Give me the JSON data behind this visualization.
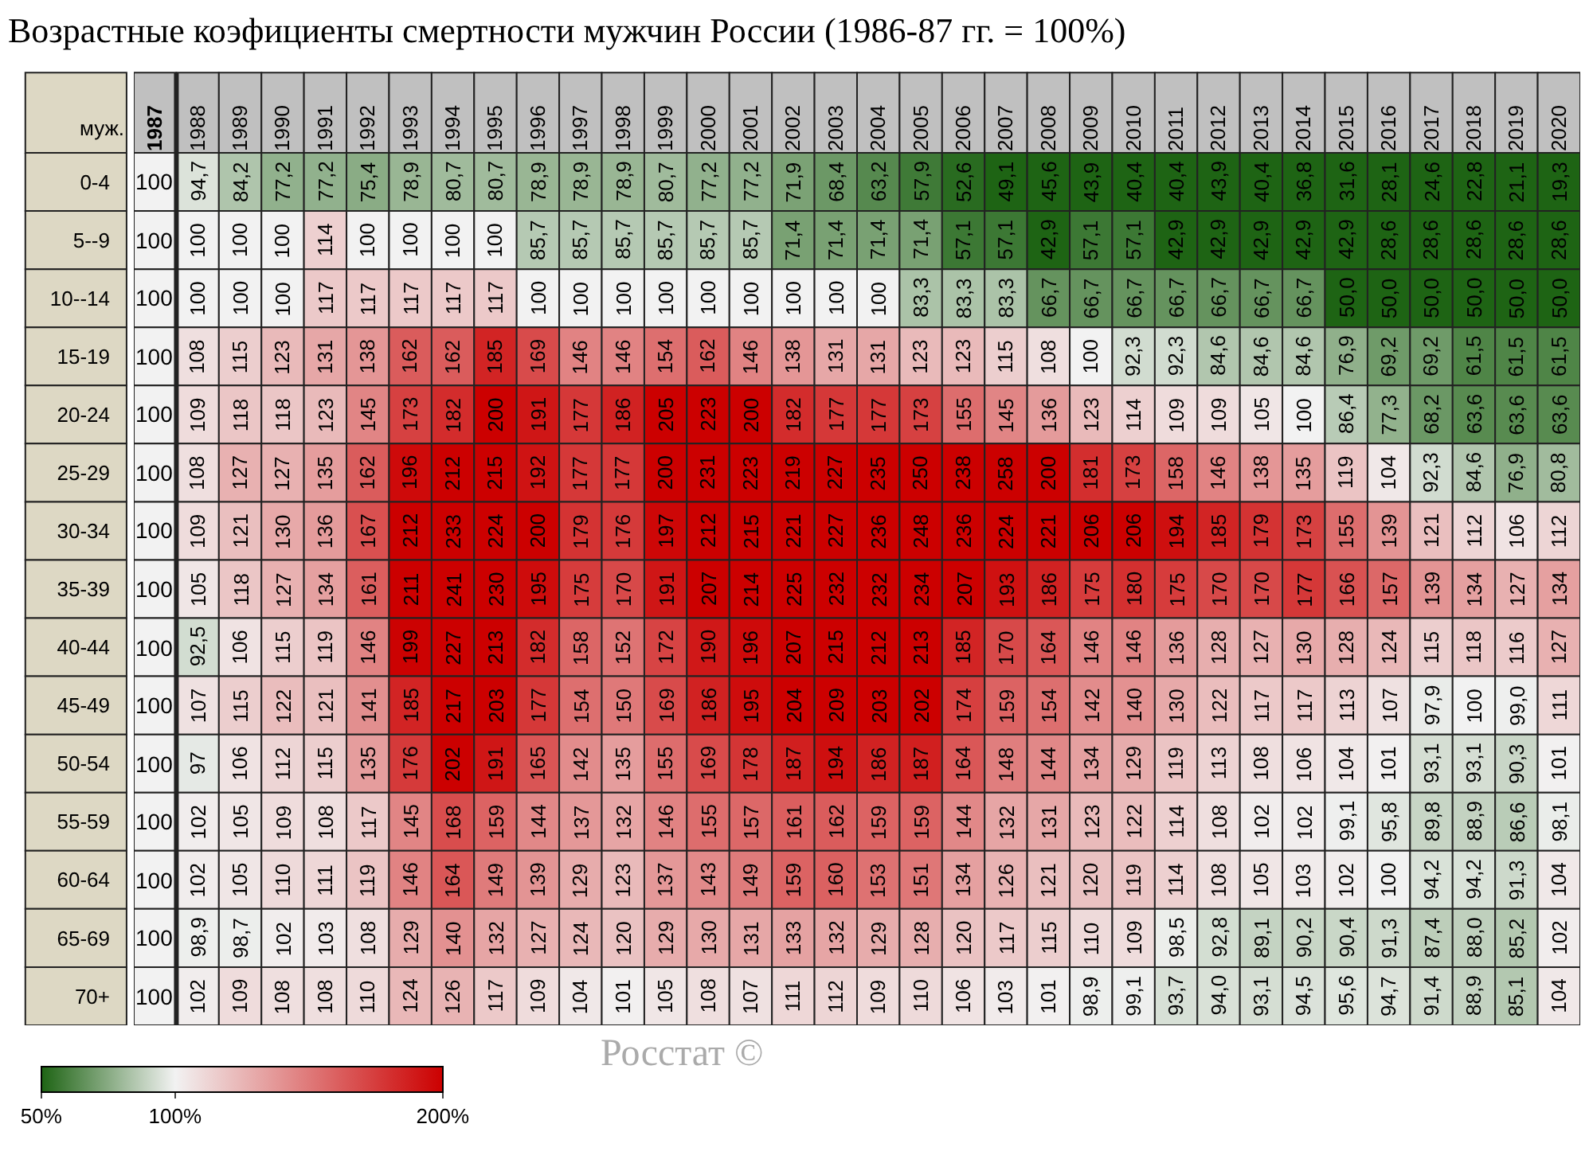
{
  "chart_data": {
    "type": "heatmap",
    "title": "Возрастные коэфициенты смертности мужчин России (1986-87 гг. = 100%)",
    "ylabel": "муж.",
    "annotations": [
      "Росстат ©"
    ],
    "categories": [
      "1987",
      "1988",
      "1989",
      "1990",
      "1991",
      "1992",
      "1993",
      "1994",
      "1995",
      "1996",
      "1997",
      "1998",
      "1999",
      "2000",
      "2001",
      "2002",
      "2003",
      "2004",
      "2005",
      "2006",
      "2007",
      "2008",
      "2009",
      "2010",
      "2011",
      "2012",
      "2013",
      "2014",
      "2015",
      "2016",
      "2017",
      "2018",
      "2019",
      "2020"
    ],
    "y_categories": [
      "0-4",
      "5--9",
      "10--14",
      "15-19",
      "20-24",
      "25-29",
      "30-34",
      "35-39",
      "40-44",
      "45-49",
      "50-54",
      "55-59",
      "60-64",
      "65-69",
      "70+"
    ],
    "cells": [
      [
        100,
        94.7,
        84.2,
        77.2,
        77.2,
        75.4,
        78.9,
        80.7,
        80.7,
        78.9,
        78.9,
        78.9,
        80.7,
        77.2,
        77.2,
        71.9,
        68.4,
        63.2,
        57.9,
        52.6,
        49.1,
        45.6,
        43.9,
        40.4,
        40.4,
        43.9,
        40.4,
        36.8,
        31.6,
        28.1,
        24.6,
        22.8,
        21.1,
        19.3
      ],
      [
        100,
        100,
        100,
        100,
        114,
        100,
        100,
        100,
        100,
        85.7,
        85.7,
        85.7,
        85.7,
        85.7,
        85.7,
        71.4,
        71.4,
        71.4,
        71.4,
        57.1,
        57.1,
        42.9,
        57.1,
        57.1,
        42.9,
        42.9,
        42.9,
        42.9,
        42.9,
        28.6,
        28.6,
        28.6,
        28.6,
        28.6
      ],
      [
        100,
        100,
        100,
        100,
        117,
        117,
        117,
        117,
        117,
        100,
        100,
        100,
        100,
        100,
        100,
        100,
        100,
        100,
        83.3,
        83.3,
        83.3,
        66.7,
        66.7,
        66.7,
        66.7,
        66.7,
        66.7,
        66.7,
        50.0,
        50.0,
        50.0,
        50.0,
        50.0,
        50.0
      ],
      [
        100,
        108,
        115,
        123,
        131,
        138,
        162,
        162,
        185,
        169,
        146,
        146,
        154,
        162,
        146,
        138,
        131,
        131,
        123,
        123,
        115,
        108,
        100,
        92.3,
        92.3,
        84.6,
        84.6,
        84.6,
        76.9,
        69.2,
        69.2,
        61.5,
        61.5,
        61.5
      ],
      [
        100,
        109,
        118,
        118,
        123,
        145,
        173,
        182,
        200,
        191,
        177,
        186,
        205,
        223,
        200,
        182,
        177,
        177,
        173,
        155,
        145,
        136,
        123,
        114,
        109,
        109,
        105,
        100,
        86.4,
        77.3,
        68.2,
        63.6,
        63.6,
        63.6
      ],
      [
        100,
        108,
        127,
        127,
        135,
        162,
        196,
        212,
        215,
        192,
        177,
        177,
        200,
        231,
        223,
        219,
        227,
        235,
        250,
        238,
        258,
        200,
        181,
        173,
        158,
        146,
        138,
        135,
        119,
        104,
        92.3,
        84.6,
        76.9,
        80.8
      ],
      [
        100,
        109,
        121,
        130,
        136,
        167,
        212,
        233,
        224,
        200,
        179,
        176,
        197,
        212,
        215,
        221,
        227,
        236,
        248,
        236,
        224,
        221,
        206,
        206,
        194,
        185,
        179,
        173,
        155,
        139,
        121,
        112,
        106,
        112
      ],
      [
        100,
        105,
        118,
        127,
        134,
        161,
        211,
        241,
        230,
        195,
        175,
        170,
        191,
        207,
        214,
        225,
        232,
        232,
        234,
        207,
        193,
        186,
        175,
        180,
        175,
        170,
        170,
        177,
        166,
        157,
        139,
        134,
        127,
        134
      ],
      [
        100,
        92.5,
        106,
        115,
        119,
        146,
        199,
        227,
        213,
        182,
        158,
        152,
        172,
        190,
        196,
        207,
        215,
        212,
        213,
        185,
        170,
        164,
        146,
        146,
        136,
        128,
        127,
        130,
        128,
        124,
        115,
        118,
        116,
        127
      ],
      [
        100,
        107,
        115,
        122,
        121,
        141,
        185,
        217,
        203,
        177,
        154,
        150,
        169,
        186,
        195,
        204,
        209,
        203,
        202,
        174,
        159,
        154,
        142,
        140,
        130,
        122,
        117,
        117,
        113,
        107,
        97.9,
        100,
        99.0,
        111
      ],
      [
        100,
        97,
        106,
        112,
        115,
        135,
        176,
        202,
        191,
        165,
        142,
        135,
        155,
        169,
        178,
        187,
        194,
        186,
        187,
        164,
        148,
        144,
        134,
        129,
        119,
        113,
        108,
        106,
        104,
        101,
        93.1,
        93.1,
        90.3,
        101
      ],
      [
        100,
        102,
        105,
        109,
        108,
        117,
        145,
        168,
        159,
        144,
        137,
        132,
        146,
        155,
        157,
        161,
        162,
        159,
        159,
        144,
        132,
        131,
        123,
        122,
        114,
        108,
        102,
        102,
        99.1,
        95.8,
        89.8,
        88.9,
        86.6,
        98.1
      ],
      [
        100,
        102,
        105,
        110,
        111,
        119,
        146,
        164,
        149,
        139,
        129,
        123,
        137,
        143,
        149,
        159,
        160,
        153,
        151,
        134,
        126,
        121,
        120,
        119,
        114,
        108,
        105,
        103,
        102,
        100,
        94.2,
        94.2,
        91.3,
        104
      ],
      [
        100,
        98.9,
        98.7,
        102,
        103,
        108,
        129,
        140,
        132,
        127,
        124,
        120,
        129,
        130,
        131,
        133,
        132,
        129,
        128,
        120,
        117,
        115,
        110,
        109,
        98.5,
        92.8,
        89.1,
        90.2,
        90.4,
        91.3,
        87.4,
        88.0,
        85.2,
        102
      ],
      [
        100,
        102,
        109,
        108,
        108,
        110,
        124,
        126,
        117,
        109,
        104,
        101,
        105,
        108,
        107,
        111,
        112,
        109,
        110,
        106,
        103,
        101,
        98.9,
        99.1,
        93.7,
        94.0,
        93.1,
        94.5,
        95.6,
        94.7,
        91.4,
        88.9,
        85.1,
        104
      ]
    ],
    "cell_labels": [
      [
        "100",
        "94,7",
        "84,2",
        "77,2",
        "77,2",
        "75,4",
        "78,9",
        "80,7",
        "80,7",
        "78,9",
        "78,9",
        "78,9",
        "80,7",
        "77,2",
        "77,2",
        "71,9",
        "68,4",
        "63,2",
        "57,9",
        "52,6",
        "49,1",
        "45,6",
        "43,9",
        "40,4",
        "40,4",
        "43,9",
        "40,4",
        "36,8",
        "31,6",
        "28,1",
        "24,6",
        "22,8",
        "21,1",
        "19,3"
      ],
      [
        "100",
        "100",
        "100",
        "100",
        "114",
        "100",
        "100",
        "100",
        "100",
        "85,7",
        "85,7",
        "85,7",
        "85,7",
        "85,7",
        "85,7",
        "71,4",
        "71,4",
        "71,4",
        "71,4",
        "57,1",
        "57,1",
        "42,9",
        "57,1",
        "57,1",
        "42,9",
        "42,9",
        "42,9",
        "42,9",
        "42,9",
        "28,6",
        "28,6",
        "28,6",
        "28,6",
        "28,6"
      ],
      [
        "100",
        "100",
        "100",
        "100",
        "117",
        "117",
        "117",
        "117",
        "117",
        "100",
        "100",
        "100",
        "100",
        "100",
        "100",
        "100",
        "100",
        "100",
        "83,3",
        "83,3",
        "83,3",
        "66,7",
        "66,7",
        "66,7",
        "66,7",
        "66,7",
        "66,7",
        "66,7",
        "50,0",
        "50,0",
        "50,0",
        "50,0",
        "50,0",
        "50,0"
      ],
      [
        "100",
        "108",
        "115",
        "123",
        "131",
        "138",
        "162",
        "162",
        "185",
        "169",
        "146",
        "146",
        "154",
        "162",
        "146",
        "138",
        "131",
        "131",
        "123",
        "123",
        "115",
        "108",
        "100",
        "92,3",
        "92,3",
        "84,6",
        "84,6",
        "84,6",
        "76,9",
        "69,2",
        "69,2",
        "61,5",
        "61,5",
        "61,5"
      ],
      [
        "100",
        "109",
        "118",
        "118",
        "123",
        "145",
        "173",
        "182",
        "200",
        "191",
        "177",
        "186",
        "205",
        "223",
        "200",
        "182",
        "177",
        "177",
        "173",
        "155",
        "145",
        "136",
        "123",
        "114",
        "109",
        "109",
        "105",
        "100",
        "86,4",
        "77,3",
        "68,2",
        "63,6",
        "63,6",
        "63,6"
      ],
      [
        "100",
        "108",
        "127",
        "127",
        "135",
        "162",
        "196",
        "212",
        "215",
        "192",
        "177",
        "177",
        "200",
        "231",
        "223",
        "219",
        "227",
        "235",
        "250",
        "238",
        "258",
        "200",
        "181",
        "173",
        "158",
        "146",
        "138",
        "135",
        "119",
        "104",
        "92,3",
        "84,6",
        "76,9",
        "80,8"
      ],
      [
        "100",
        "109",
        "121",
        "130",
        "136",
        "167",
        "212",
        "233",
        "224",
        "200",
        "179",
        "176",
        "197",
        "212",
        "215",
        "221",
        "227",
        "236",
        "248",
        "236",
        "224",
        "221",
        "206",
        "206",
        "194",
        "185",
        "179",
        "173",
        "155",
        "139",
        "121",
        "112",
        "106",
        "112"
      ],
      [
        "100",
        "105",
        "118",
        "127",
        "134",
        "161",
        "211",
        "241",
        "230",
        "195",
        "175",
        "170",
        "191",
        "207",
        "214",
        "225",
        "232",
        "232",
        "234",
        "207",
        "193",
        "186",
        "175",
        "180",
        "175",
        "170",
        "170",
        "177",
        "166",
        "157",
        "139",
        "134",
        "127",
        "134"
      ],
      [
        "100",
        "92,5",
        "106",
        "115",
        "119",
        "146",
        "199",
        "227",
        "213",
        "182",
        "158",
        "152",
        "172",
        "190",
        "196",
        "207",
        "215",
        "212",
        "213",
        "185",
        "170",
        "164",
        "146",
        "146",
        "136",
        "128",
        "127",
        "130",
        "128",
        "124",
        "115",
        "118",
        "116",
        "127"
      ],
      [
        "100",
        "107",
        "115",
        "122",
        "121",
        "141",
        "185",
        "217",
        "203",
        "177",
        "154",
        "150",
        "169",
        "186",
        "195",
        "204",
        "209",
        "203",
        "202",
        "174",
        "159",
        "154",
        "142",
        "140",
        "130",
        "122",
        "117",
        "117",
        "113",
        "107",
        "97,9",
        "100",
        "99,0",
        "111"
      ],
      [
        "100",
        "97",
        "106",
        "112",
        "115",
        "135",
        "176",
        "202",
        "191",
        "165",
        "142",
        "135",
        "155",
        "169",
        "178",
        "187",
        "194",
        "186",
        "187",
        "164",
        "148",
        "144",
        "134",
        "129",
        "119",
        "113",
        "108",
        "106",
        "104",
        "101",
        "93,1",
        "93,1",
        "90,3",
        "101"
      ],
      [
        "100",
        "102",
        "105",
        "109",
        "108",
        "117",
        "145",
        "168",
        "159",
        "144",
        "137",
        "132",
        "146",
        "155",
        "157",
        "161",
        "162",
        "159",
        "159",
        "144",
        "132",
        "131",
        "123",
        "122",
        "114",
        "108",
        "102",
        "102",
        "99,1",
        "95,8",
        "89,8",
        "88,9",
        "86,6",
        "98,1"
      ],
      [
        "100",
        "102",
        "105",
        "110",
        "111",
        "119",
        "146",
        "164",
        "149",
        "139",
        "129",
        "123",
        "137",
        "143",
        "149",
        "159",
        "160",
        "153",
        "151",
        "134",
        "126",
        "121",
        "120",
        "119",
        "114",
        "108",
        "105",
        "103",
        "102",
        "100",
        "94,2",
        "94,2",
        "91,3",
        "104"
      ],
      [
        "100",
        "98,9",
        "98,7",
        "102",
        "103",
        "108",
        "129",
        "140",
        "132",
        "127",
        "124",
        "120",
        "129",
        "130",
        "131",
        "133",
        "132",
        "129",
        "128",
        "120",
        "117",
        "115",
        "110",
        "109",
        "98,5",
        "92,8",
        "89,1",
        "90,2",
        "90,4",
        "91,3",
        "87,4",
        "88,0",
        "85,2",
        "102"
      ],
      [
        "100",
        "102",
        "109",
        "108",
        "108",
        "110",
        "124",
        "126",
        "117",
        "109",
        "104",
        "101",
        "105",
        "108",
        "107",
        "111",
        "112",
        "109",
        "110",
        "106",
        "103",
        "101",
        "98,9",
        "99,1",
        "93,7",
        "94,0",
        "93,1",
        "94,5",
        "95,6",
        "94,7",
        "91,4",
        "88,9",
        "85,1",
        "104"
      ]
    ],
    "clim": [
      50,
      200
    ],
    "cticks": [
      {
        "value": 50,
        "label": "50%"
      },
      {
        "value": 100,
        "label": "100%"
      },
      {
        "value": 200,
        "label": "200%"
      }
    ],
    "colors": [
      "#1e6414",
      "#f2f2f2",
      "#cc0000"
    ]
  }
}
